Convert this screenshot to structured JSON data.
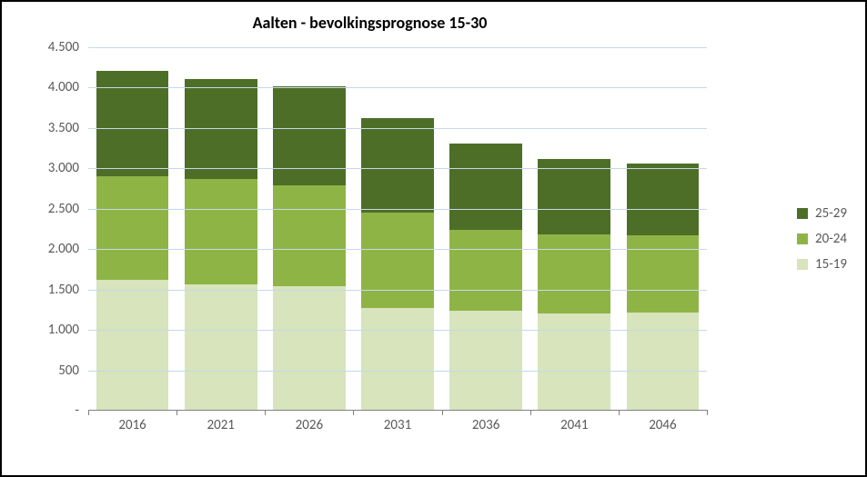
{
  "chart": {
    "type": "stacked-bar",
    "title": "Aalten - bevolkingsprognose 15-30",
    "title_fontsize": 18,
    "title_fontweight": "bold",
    "background_color": "#ffffff",
    "border_color": "#000000",
    "grid_color": "#c5d9e8",
    "axis_line_color": "#808080",
    "tick_label_color": "#595959",
    "tick_label_fontsize": 15,
    "ylim": [
      0,
      4500
    ],
    "ytick_step": 500,
    "ytick_labels": [
      "-",
      "500",
      "1.000",
      "1.500",
      "2.000",
      "2.500",
      "3.000",
      "3.500",
      "4.000",
      "4.500"
    ],
    "categories": [
      "2016",
      "2021",
      "2026",
      "2031",
      "2036",
      "2041",
      "2046"
    ],
    "series": [
      {
        "name": "15-19",
        "color": "#d7e4bc",
        "values": [
          1610,
          1550,
          1530,
          1260,
          1230,
          1190,
          1200
        ]
      },
      {
        "name": "20-24",
        "color": "#8fb446",
        "values": [
          1280,
          1310,
          1250,
          1180,
          1000,
          980,
          960
        ]
      },
      {
        "name": "25-29",
        "color": "#4d6e27",
        "values": [
          1310,
          1240,
          1220,
          1170,
          1070,
          930,
          890
        ]
      }
    ],
    "legend_position": "right"
  }
}
